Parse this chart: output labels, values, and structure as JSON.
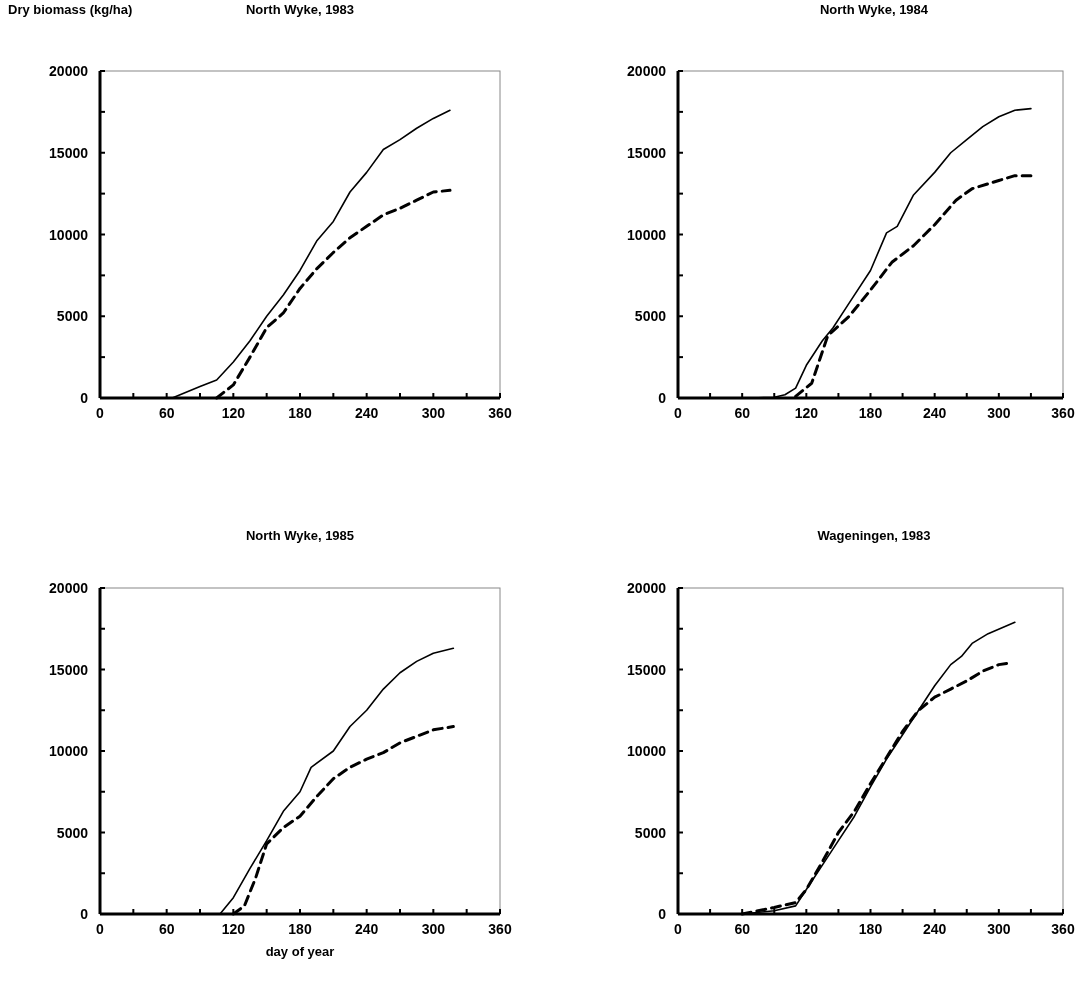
{
  "chart_data": [
    {
      "type": "line",
      "title": "North Wyke, 1983",
      "ylabel": "Dry biomass (kg/ha)",
      "xlim": [
        0,
        360
      ],
      "ylim": [
        0,
        20000
      ],
      "xticks": [
        0,
        {
          "value": 30,
          "label": null
        },
        60,
        {
          "value": 90,
          "label": null
        },
        120,
        {
          "value": 150,
          "label": null
        },
        180,
        {
          "value": 210,
          "label": null
        },
        240,
        {
          "value": 270,
          "label": null
        },
        300,
        {
          "value": 330,
          "label": null
        },
        360
      ],
      "yticks": [
        0,
        {
          "value": 2500,
          "label": null
        },
        5000,
        {
          "value": 7500,
          "label": null
        },
        10000,
        {
          "value": 12500,
          "label": null
        },
        15000,
        {
          "value": 17500,
          "label": null
        },
        20000
      ],
      "series": [
        {
          "color": "#000000",
          "line_style": "solid",
          "x": [
            65,
            90,
            105,
            120,
            135,
            150,
            165,
            180,
            195,
            210,
            225,
            240,
            255,
            270,
            285,
            300,
            315
          ],
          "values": [
            0,
            700,
            1100,
            2200,
            3500,
            5000,
            6300,
            7800,
            9600,
            10800,
            12600,
            13800,
            15200,
            15800,
            16500,
            17100,
            17600
          ]
        },
        {
          "color": "#000000",
          "line_style": "dashed",
          "x": [
            105,
            120,
            135,
            150,
            165,
            180,
            195,
            210,
            225,
            240,
            255,
            270,
            285,
            300,
            315
          ],
          "values": [
            0,
            800,
            2500,
            4300,
            5200,
            6700,
            7900,
            8900,
            9800,
            10500,
            11200,
            11600,
            12100,
            12600,
            12700
          ]
        }
      ]
    },
    {
      "type": "line",
      "title": "North Wyke, 1984",
      "xlim": [
        0,
        360
      ],
      "ylim": [
        0,
        20000
      ],
      "xticks": [
        0,
        {
          "value": 30,
          "label": null
        },
        60,
        {
          "value": 90,
          "label": null
        },
        120,
        {
          "value": 150,
          "label": null
        },
        180,
        {
          "value": 210,
          "label": null
        },
        240,
        {
          "value": 270,
          "label": null
        },
        300,
        {
          "value": 330,
          "label": null
        },
        360
      ],
      "yticks": [
        0,
        {
          "value": 2500,
          "label": null
        },
        5000,
        {
          "value": 7500,
          "label": null
        },
        10000,
        {
          "value": 12500,
          "label": null
        },
        15000,
        {
          "value": 17500,
          "label": null
        },
        20000
      ],
      "series": [
        {
          "color": "#000000",
          "line_style": "solid",
          "x": [
            70,
            90,
            100,
            110,
            120,
            135,
            145,
            160,
            180,
            195,
            205,
            220,
            240,
            255,
            270,
            285,
            300,
            315,
            330
          ],
          "values": [
            0,
            50,
            200,
            600,
            2000,
            3500,
            4300,
            5800,
            7800,
            10100,
            10500,
            12400,
            13800,
            15000,
            15800,
            16600,
            17200,
            17600,
            17700
          ]
        },
        {
          "color": "#000000",
          "line_style": "dashed",
          "x": [
            110,
            125,
            140,
            160,
            180,
            200,
            220,
            240,
            260,
            275,
            300,
            315,
            330
          ],
          "values": [
            100,
            900,
            3800,
            5000,
            6600,
            8300,
            9300,
            10600,
            12100,
            12800,
            13300,
            13600,
            13600
          ]
        }
      ]
    },
    {
      "type": "line",
      "title": "North Wyke, 1985",
      "xlabel": "day of year",
      "xlim": [
        0,
        360
      ],
      "ylim": [
        0,
        20000
      ],
      "xticks": [
        0,
        {
          "value": 30,
          "label": null
        },
        60,
        {
          "value": 90,
          "label": null
        },
        120,
        {
          "value": 150,
          "label": null
        },
        180,
        {
          "value": 210,
          "label": null
        },
        240,
        {
          "value": 270,
          "label": null
        },
        300,
        {
          "value": 330,
          "label": null
        },
        360
      ],
      "yticks": [
        0,
        {
          "value": 2500,
          "label": null
        },
        5000,
        {
          "value": 7500,
          "label": null
        },
        10000,
        {
          "value": 12500,
          "label": null
        },
        15000,
        {
          "value": 17500,
          "label": null
        },
        20000
      ],
      "series": [
        {
          "color": "#000000",
          "line_style": "solid",
          "x": [
            108,
            120,
            135,
            150,
            165,
            180,
            190,
            210,
            225,
            240,
            255,
            270,
            285,
            300,
            318
          ],
          "values": [
            0,
            1000,
            2800,
            4500,
            6300,
            7500,
            9000,
            10000,
            11500,
            12500,
            13800,
            14800,
            15500,
            16000,
            16300
          ]
        },
        {
          "color": "#000000",
          "line_style": "dashed",
          "x": [
            120,
            130,
            140,
            150,
            165,
            180,
            195,
            210,
            225,
            240,
            255,
            270,
            285,
            300,
            318
          ],
          "values": [
            0,
            500,
            2200,
            4300,
            5300,
            6000,
            7200,
            8300,
            9000,
            9500,
            9900,
            10500,
            10900,
            11300,
            11500
          ]
        }
      ]
    },
    {
      "type": "line",
      "title": "Wageningen, 1983",
      "xlim": [
        0,
        360
      ],
      "ylim": [
        0,
        20000
      ],
      "xticks": [
        0,
        {
          "value": 30,
          "label": null
        },
        60,
        {
          "value": 90,
          "label": null
        },
        120,
        {
          "value": 150,
          "label": null
        },
        180,
        {
          "value": 210,
          "label": null
        },
        240,
        {
          "value": 270,
          "label": null
        },
        300,
        {
          "value": 330,
          "label": null
        },
        360
      ],
      "yticks": [
        0,
        {
          "value": 2500,
          "label": null
        },
        5000,
        {
          "value": 7500,
          "label": null
        },
        10000,
        {
          "value": 12500,
          "label": null
        },
        15000,
        {
          "value": 17500,
          "label": null
        },
        20000
      ],
      "series": [
        {
          "color": "#000000",
          "line_style": "solid",
          "x": [
            60,
            90,
            110,
            120,
            135,
            150,
            165,
            180,
            195,
            210,
            225,
            240,
            255,
            265,
            275,
            290,
            315
          ],
          "values": [
            0,
            200,
            500,
            1500,
            3000,
            4500,
            6000,
            7800,
            9500,
            11000,
            12500,
            14000,
            15300,
            15800,
            16600,
            17200,
            17900
          ]
        },
        {
          "color": "#000000",
          "line_style": "dashed",
          "x": [
            60,
            90,
            110,
            120,
            135,
            150,
            165,
            180,
            195,
            210,
            225,
            240,
            255,
            270,
            285,
            300,
            310
          ],
          "values": [
            0,
            400,
            700,
            1500,
            3200,
            5000,
            6300,
            8000,
            9600,
            11200,
            12500,
            13300,
            13800,
            14300,
            14900,
            15300,
            15400
          ]
        }
      ]
    }
  ]
}
